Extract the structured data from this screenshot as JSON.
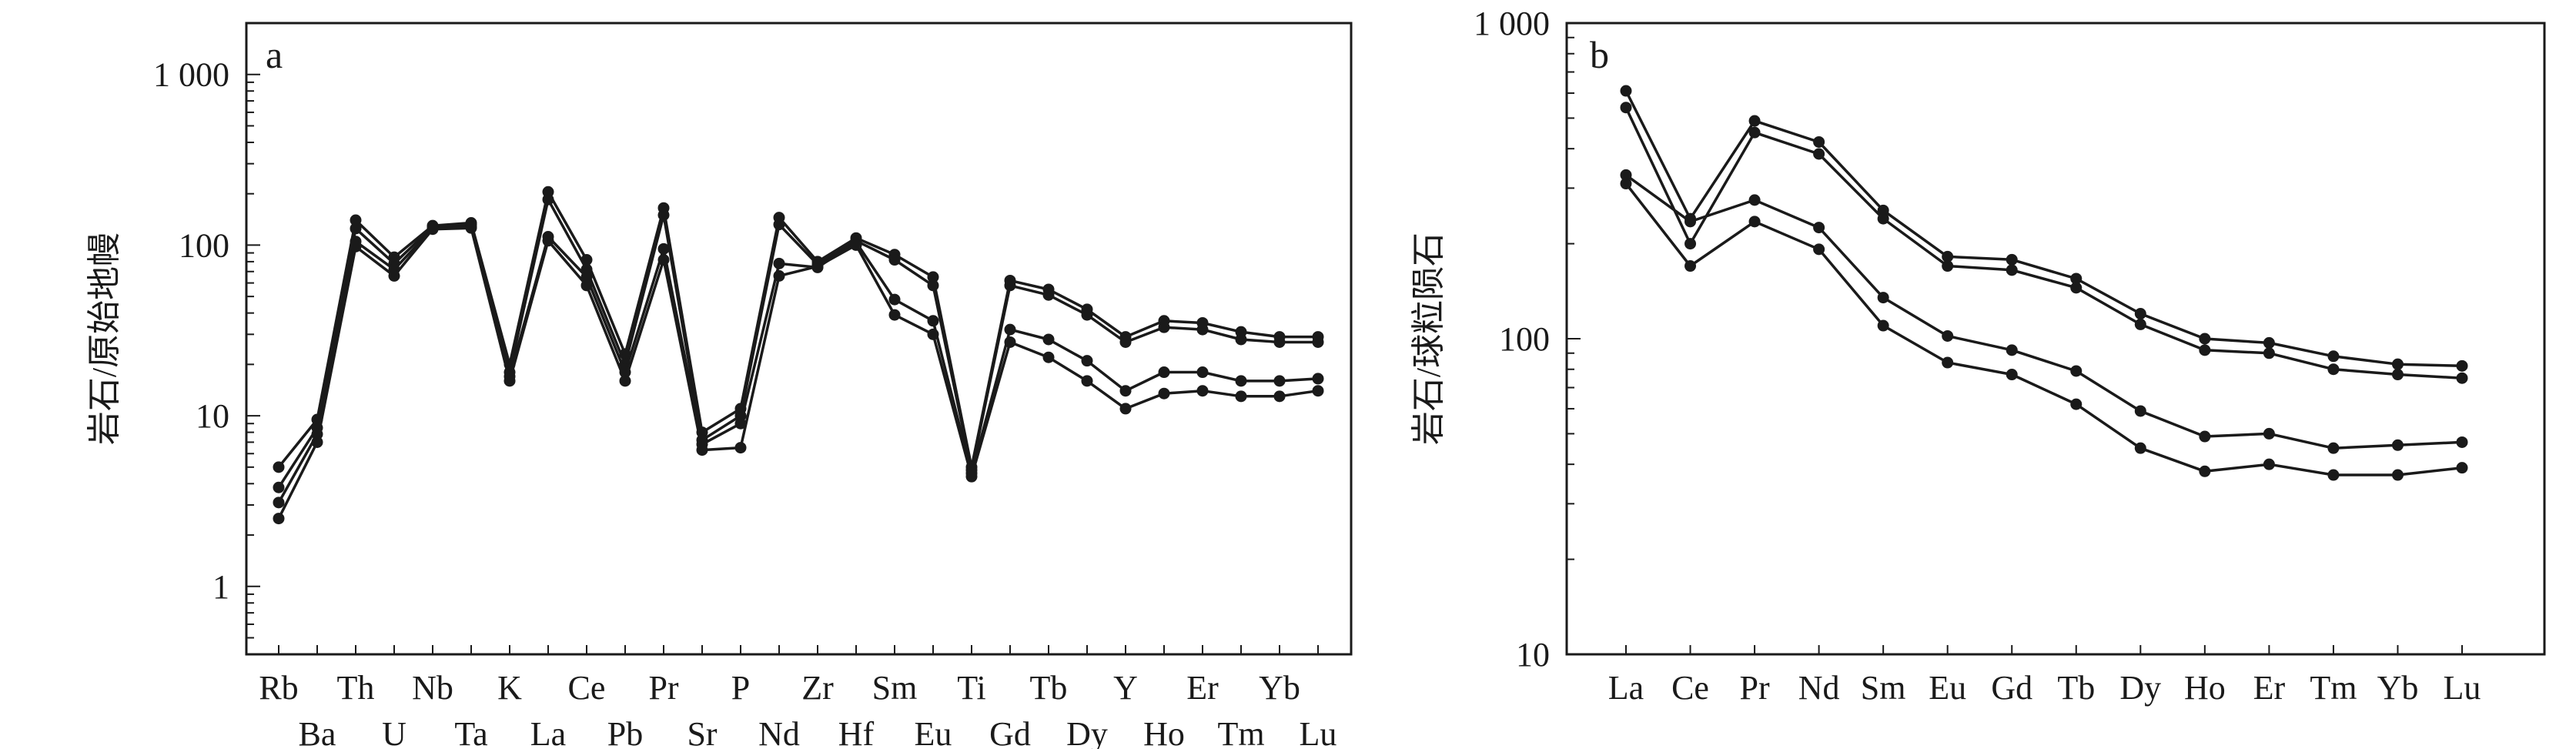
{
  "chart_data": [
    {
      "panel_label": "a",
      "type": "line",
      "ylabel": "岩石/原始地幔",
      "y_scale": "log",
      "ylim": [
        0.4,
        2000
      ],
      "y_ticks": [
        {
          "value": 1,
          "label": "1"
        },
        {
          "value": 10,
          "label": "10"
        },
        {
          "value": 100,
          "label": "100"
        },
        {
          "value": 1000,
          "label": "1 000"
        }
      ],
      "categories": [
        "Rb",
        "Ba",
        "Th",
        "U",
        "Nb",
        "Ta",
        "K",
        "La",
        "Ce",
        "Pb",
        "Pr",
        "Sr",
        "P",
        "Nd",
        "Zr",
        "Hf",
        "Sm",
        "Eu",
        "Ti",
        "Gd",
        "Tb",
        "Dy",
        "Y",
        "Ho",
        "Er",
        "Tm",
        "Yb",
        "Lu"
      ],
      "series": [
        {
          "values": [
            5.0,
            9.5,
            140,
            85,
            130,
            135,
            20,
            205,
            82,
            23,
            165,
            8.0,
            11.0,
            145,
            80,
            110,
            88,
            65,
            5.0,
            62,
            55,
            42,
            29,
            36,
            35,
            31,
            29,
            29
          ]
        },
        {
          "values": [
            3.8,
            8.5,
            125,
            78,
            128,
            132,
            18,
            185,
            72,
            20,
            150,
            7.2,
            10.0,
            132,
            77,
            106,
            82,
            58,
            4.8,
            58,
            51,
            39,
            27,
            33,
            32,
            28,
            27,
            27
          ]
        },
        {
          "values": [
            3.1,
            7.8,
            105,
            72,
            125,
            128,
            17,
            112,
            65,
            18,
            95,
            6.8,
            9.0,
            78,
            74,
            104,
            48,
            36,
            4.6,
            32,
            28,
            21,
            14,
            18,
            18,
            16,
            16,
            16.5
          ]
        },
        {
          "values": [
            2.5,
            7.0,
            98,
            66,
            124,
            126,
            16,
            106,
            58,
            16,
            82,
            6.3,
            6.5,
            66,
            75,
            100,
            39,
            30,
            4.4,
            27,
            22,
            16,
            11,
            13.5,
            14,
            13,
            13,
            14
          ]
        }
      ]
    },
    {
      "panel_label": "b",
      "type": "line",
      "ylabel": "岩石/球粒陨石",
      "y_scale": "log",
      "ylim": [
        10,
        1000
      ],
      "y_ticks": [
        {
          "value": 10,
          "label": "10"
        },
        {
          "value": 100,
          "label": "100"
        },
        {
          "value": 1000,
          "label": "1 000"
        }
      ],
      "categories": [
        "La",
        "Ce",
        "Pr",
        "Nd",
        "Sm",
        "Eu",
        "Gd",
        "Tb",
        "Dy",
        "Ho",
        "Er",
        "Tm",
        "Yb",
        "Lu"
      ],
      "series": [
        {
          "values": [
            610,
            240,
            490,
            420,
            255,
            182,
            178,
            155,
            120,
            100,
            97,
            88,
            83,
            82
          ]
        },
        {
          "values": [
            540,
            200,
            450,
            385,
            240,
            170,
            165,
            145,
            111,
            92,
            90,
            80,
            77,
            75
          ]
        },
        {
          "values": [
            330,
            235,
            275,
            225,
            135,
            102,
            92,
            79,
            59,
            49,
            50,
            45,
            46,
            47
          ]
        },
        {
          "values": [
            310,
            170,
            235,
            192,
            110,
            84,
            77,
            62,
            45,
            38,
            40,
            37,
            37,
            39
          ]
        }
      ]
    }
  ]
}
